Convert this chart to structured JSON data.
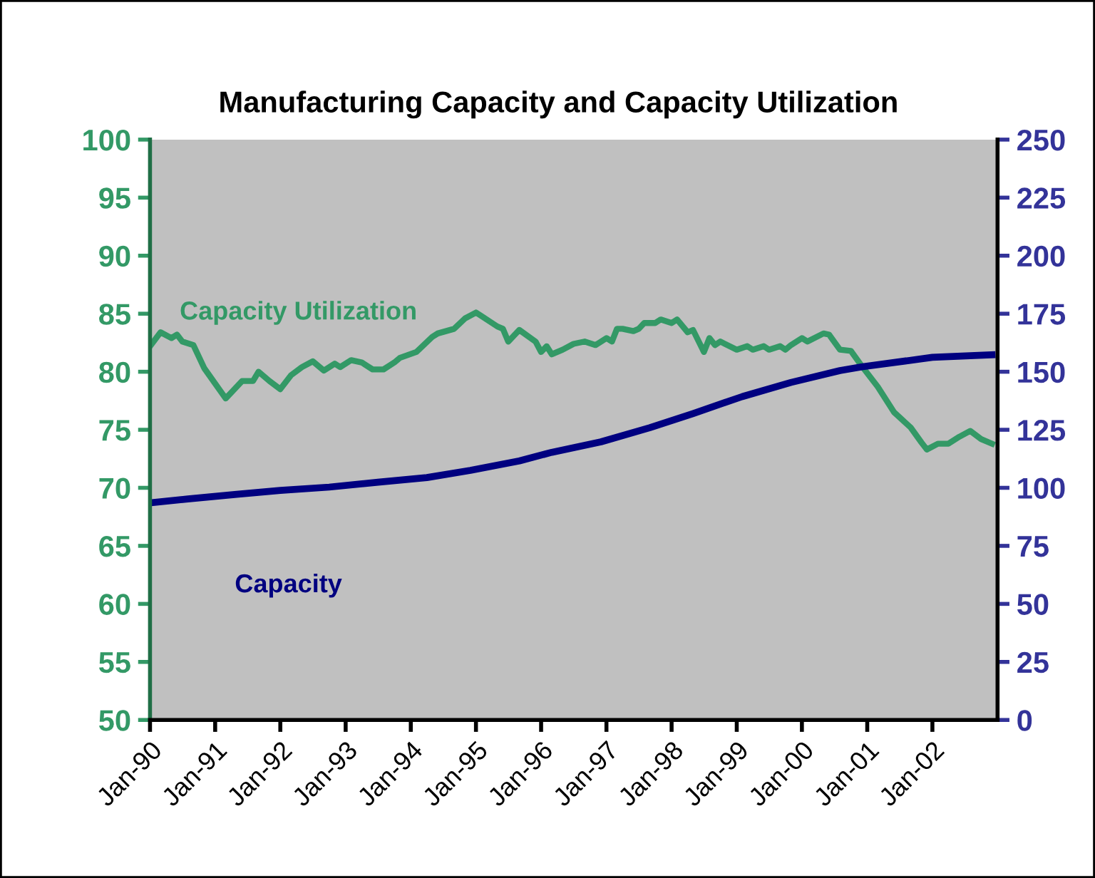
{
  "chart_data": {
    "type": "line",
    "title": "Manufacturing Capacity and Capacity Utilization",
    "series": [
      {
        "name": "Capacity Utilization",
        "color": "#339966",
        "x": [
          "1990-01",
          "1990-03",
          "1990-05",
          "1990-06",
          "1990-07",
          "1990-09",
          "1990-11",
          "1991-03",
          "1991-06",
          "1991-08",
          "1991-09",
          "1991-11",
          "1992-01",
          "1992-03",
          "1992-05",
          "1992-07",
          "1992-09",
          "1992-11",
          "1992-12",
          "1993-02",
          "1993-04",
          "1993-06",
          "1993-08",
          "1993-10",
          "1993-11",
          "1994-02",
          "1994-05",
          "1994-06",
          "1994-09",
          "1994-11",
          "1995-01",
          "1995-02",
          "1995-05",
          "1995-06",
          "1995-07",
          "1995-09",
          "1995-12",
          "1996-01",
          "1996-02",
          "1996-03",
          "1996-05",
          "1996-07",
          "1996-09",
          "1996-11",
          "1997-01",
          "1997-02",
          "1997-03",
          "1997-04",
          "1997-06",
          "1997-07",
          "1997-08",
          "1997-10",
          "1997-11",
          "1998-01",
          "1998-02",
          "1998-04",
          "1998-05",
          "1998-07",
          "1998-08",
          "1998-09",
          "1998-10",
          "1999-01",
          "1999-03",
          "1999-04",
          "1999-06",
          "1999-07",
          "1999-09",
          "1999-10",
          "1999-11",
          "2000-01",
          "2000-02",
          "2000-05",
          "2000-06",
          "2000-08",
          "2000-10",
          "2000-12",
          "2001-03",
          "2001-06",
          "2001-09",
          "2001-11",
          "2001-12",
          "2002-02",
          "2002-04",
          "2002-06",
          "2002-08",
          "2002-10",
          "2002-12"
        ],
        "values": [
          82.2,
          83.4,
          82.9,
          83.2,
          82.6,
          82.3,
          80.3,
          77.7,
          79.2,
          79.2,
          80.0,
          79.2,
          78.5,
          79.7,
          80.4,
          80.9,
          80.1,
          80.7,
          80.4,
          81.0,
          80.8,
          80.2,
          80.2,
          80.8,
          81.2,
          81.7,
          83.0,
          83.3,
          83.7,
          84.6,
          85.1,
          84.8,
          83.9,
          83.7,
          82.6,
          83.6,
          82.6,
          81.7,
          82.2,
          81.5,
          81.9,
          82.4,
          82.6,
          82.3,
          82.9,
          82.6,
          83.7,
          83.7,
          83.5,
          83.7,
          84.2,
          84.2,
          84.5,
          84.2,
          84.5,
          83.4,
          83.6,
          81.7,
          82.9,
          82.3,
          82.6,
          81.9,
          82.2,
          81.9,
          82.2,
          81.9,
          82.2,
          81.9,
          82.3,
          82.9,
          82.6,
          83.3,
          83.2,
          81.9,
          81.8,
          80.5,
          78.7,
          76.5,
          75.2,
          73.9,
          73.3,
          73.8,
          73.8,
          74.4,
          74.9,
          74.2,
          73.8
        ]
      },
      {
        "name": "Capacity",
        "color": "#000080",
        "axis": "y2",
        "x": [
          "1990-01",
          "1990-08",
          "1991-05",
          "1992-01",
          "1992-10",
          "1993-07",
          "1994-04",
          "1994-12",
          "1995-09",
          "1996-03",
          "1996-12",
          "1997-09",
          "1998-05",
          "1999-02",
          "1999-11",
          "2000-08",
          "2000-12",
          "2002-01",
          "2002-12"
        ],
        "values": [
          93.5,
          95.2,
          97.2,
          98.9,
          100.3,
          102.4,
          104.4,
          107.5,
          111.6,
          115.3,
          119.8,
          125.9,
          132,
          139.3,
          145.4,
          150.5,
          152.1,
          156.2,
          157.3
        ]
      }
    ],
    "xlim": [
      "1990-01",
      "2003-01"
    ],
    "xticks": [
      {
        "value": "1990-01",
        "label": "Jan-90"
      },
      {
        "value": "1991-01",
        "label": "Jan-91"
      },
      {
        "value": "1992-01",
        "label": "Jan-92"
      },
      {
        "value": "1993-01",
        "label": "Jan-93"
      },
      {
        "value": "1994-01",
        "label": "Jan-94"
      },
      {
        "value": "1995-01",
        "label": "Jan-95"
      },
      {
        "value": "1996-01",
        "label": "Jan-96"
      },
      {
        "value": "1997-01",
        "label": "Jan-97"
      },
      {
        "value": "1998-01",
        "label": "Jan-98"
      },
      {
        "value": "1999-01",
        "label": "Jan-99"
      },
      {
        "value": "2000-01",
        "label": "Jan-00"
      },
      {
        "value": "2001-01",
        "label": "Jan-01"
      },
      {
        "value": "2002-01",
        "label": "Jan-02"
      }
    ],
    "ylim": [
      50,
      100
    ],
    "yticks": [
      50,
      55,
      60,
      65,
      70,
      75,
      80,
      85,
      90,
      95,
      100
    ],
    "y2lim": [
      0,
      250
    ],
    "y2ticks": [
      0,
      25,
      50,
      75,
      100,
      125,
      150,
      175,
      200,
      225,
      250
    ],
    "grid": false,
    "legend": false,
    "marker": "none",
    "line_style": "solid"
  }
}
